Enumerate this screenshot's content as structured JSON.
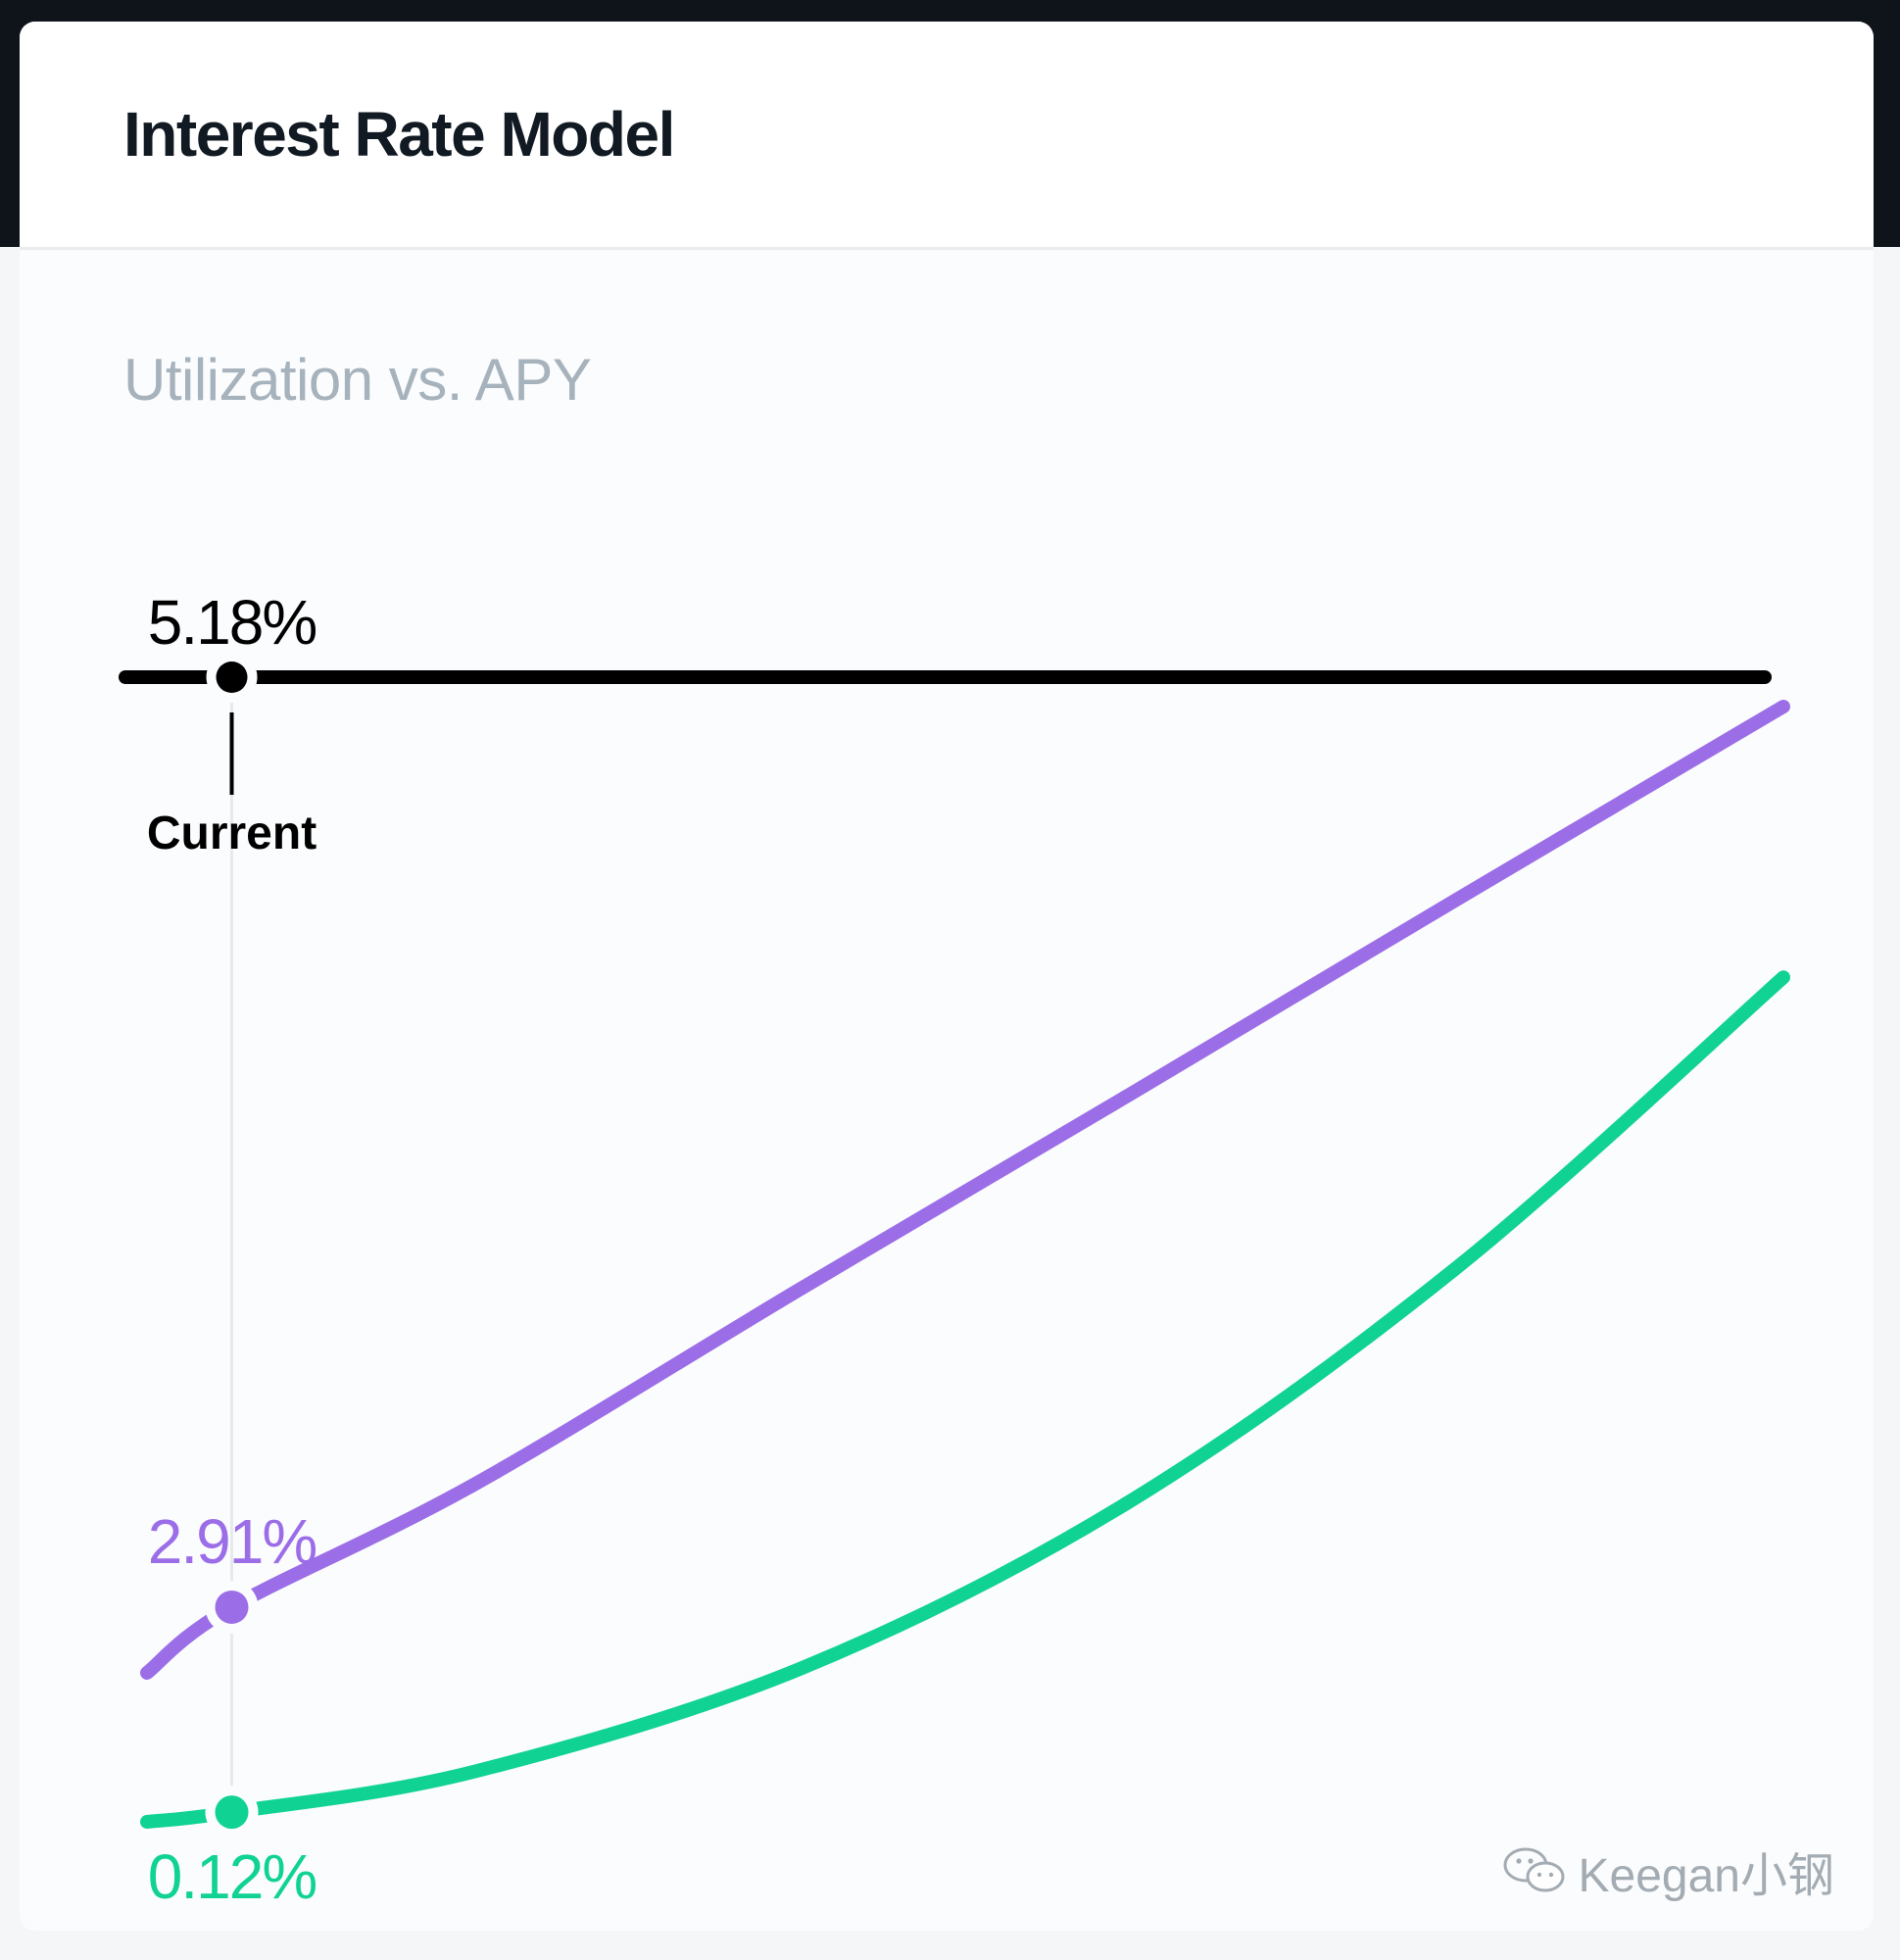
{
  "header": {
    "title": "Interest Rate Model"
  },
  "chart": {
    "subtitle": "Utilization vs. APY",
    "current_label": "Current",
    "utilization_value": "5.18%",
    "borrow_value": "2.91%",
    "supply_value": "0.12%"
  },
  "colors": {
    "borrow": "#9b6ee8",
    "supply": "#10d393",
    "utilization": "#000000",
    "title": "#111922",
    "subtitle": "#a6b2bc"
  },
  "watermark": {
    "text": "Keegan小钢",
    "icon": "wechat-icon"
  },
  "chart_data": {
    "type": "line",
    "title": "Utilization vs. APY",
    "xlabel": "",
    "ylabel": "",
    "current_utilization_percent": 5.18,
    "series": [
      {
        "name": "",
        "color": "#9b6ee8",
        "current_value_percent": 2.91,
        "x_utilization": [
          0,
          5.18,
          20,
          40,
          60,
          80,
          100
        ],
        "y_apy_relative": [
          0,
          0.068,
          0.195,
          0.398,
          0.598,
          0.8,
          1.0
        ]
      },
      {
        "name": "",
        "color": "#10d393",
        "current_value_percent": 0.12,
        "x_utilization": [
          0,
          5.18,
          20,
          40,
          60,
          80,
          100
        ],
        "y_apy_relative": [
          0,
          0.01,
          0.052,
          0.159,
          0.331,
          0.573,
          0.874
        ]
      }
    ]
  }
}
